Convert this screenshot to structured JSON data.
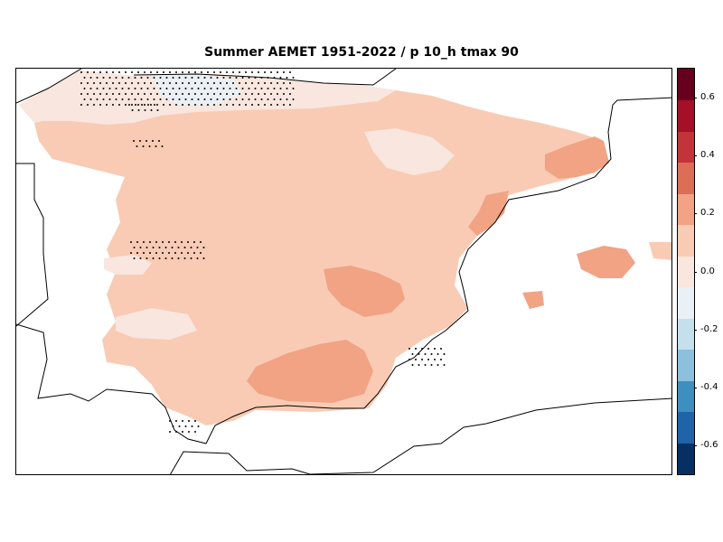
{
  "title": "Summer AEMET 1951-2022 / p 10_h tmax 90",
  "colorbar": {
    "ticks": [
      "-0.6",
      "-0.4",
      "-0.2",
      "0.0",
      "0.2",
      "0.4",
      "0.6"
    ],
    "tick_values": [
      -0.6,
      -0.4,
      -0.2,
      0.0,
      0.2,
      0.4,
      0.6
    ],
    "range": [
      -0.7,
      0.7
    ],
    "step": 0.1,
    "colors": [
      "#053061",
      "#1f63a8",
      "#3f8ec0",
      "#8cc0dd",
      "#c5dfec",
      "#eaf0f4",
      "#f8e6df",
      "#f9cbb4",
      "#f1a384",
      "#dc6e57",
      "#c23438",
      "#a50f27",
      "#67001f"
    ]
  },
  "map": {
    "type": "gridded-anomaly-map",
    "region": "Iberian Peninsula and Balearic Islands",
    "dominant_value_range": [
      0.1,
      0.2
    ],
    "higher_value_regions": [
      0.2,
      0.3
    ],
    "near_zero_regions": [
      0.0,
      0.1
    ],
    "northern_coast_values": [
      -0.1,
      0.1
    ],
    "stippling": "significance dots"
  }
}
